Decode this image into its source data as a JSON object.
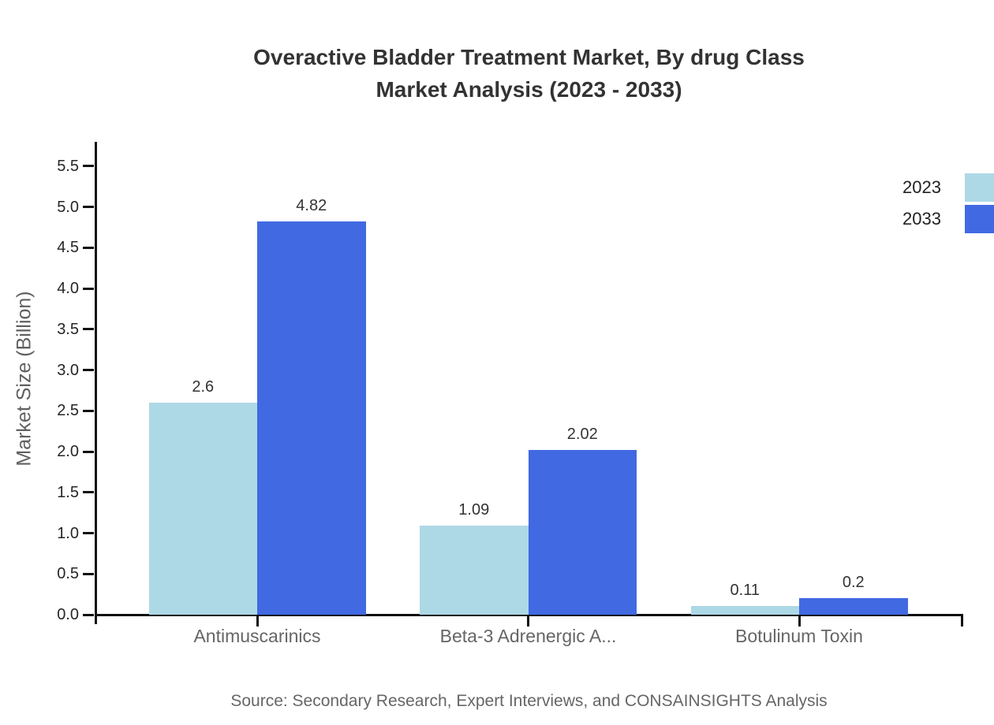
{
  "title": {
    "line1": "Overactive Bladder Treatment Market, By drug Class",
    "line2": "Market Analysis (2023 - 2033)"
  },
  "source_note": "Source: Secondary Research, Expert Interviews, and CONSAINSIGHTS Analysis",
  "colors": {
    "series_2023": "#ADD8E6",
    "series_2033": "#4169E1",
    "axis": "#111111",
    "title_text": "#333333",
    "tick_text": "#262626",
    "category_text": "#666666",
    "background": "#ffffff"
  },
  "chart_data": {
    "type": "bar",
    "title": "Overactive Bladder Treatment Market, By drug Class Market Analysis (2023 - 2033)",
    "categories": [
      "Antimuscarinics",
      "Beta-3 Adrenergic A...",
      "Botulinum Toxin"
    ],
    "series": [
      {
        "name": "2023",
        "color": "#ADD8E6",
        "values": [
          2.6,
          1.09,
          0.11
        ],
        "value_labels": [
          "2.6",
          "1.09",
          "0.11"
        ]
      },
      {
        "name": "2033",
        "color": "#4169E1",
        "values": [
          4.82,
          2.02,
          0.2
        ],
        "value_labels": [
          "4.82",
          "2.02",
          "0.2"
        ]
      }
    ],
    "xlabel": "",
    "ylabel": "Market Size (Billion)",
    "ylim": [
      0,
      5.75
    ],
    "yticks": [
      0.0,
      0.5,
      1.0,
      1.5,
      2.0,
      2.5,
      3.0,
      3.5,
      4.0,
      4.5,
      5.0,
      5.5
    ],
    "grid": false,
    "legend_position": "top-right",
    "legend_entries": [
      "2023",
      "2033"
    ]
  }
}
